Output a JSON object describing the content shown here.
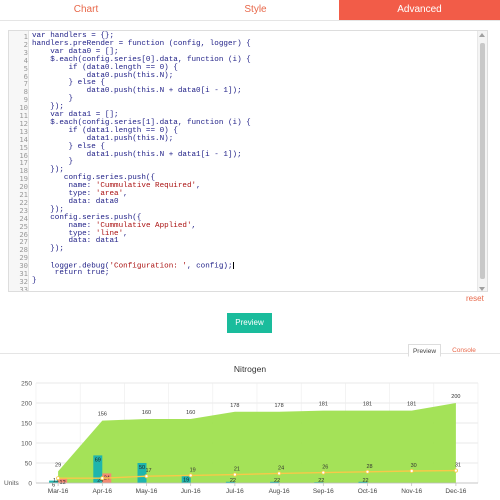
{
  "tabs": [
    {
      "label": "Chart",
      "active": false
    },
    {
      "label": "Style",
      "active": false
    },
    {
      "label": "Advanced",
      "active": true
    }
  ],
  "editor": {
    "lines": [
      "var handlers = {};",
      "handlers.preRender = function (config, logger) {",
      "    var data0 = [];",
      "    $.each(config.series[0].data, function (i) {",
      "        if (data0.length == 0) {",
      "            data0.push(this.N);",
      "        } else {",
      "            data0.push(this.N + data0[i - 1]);",
      "        }",
      "    });",
      "    var data1 = [];",
      "    $.each(config.series[1].data, function (i) {",
      "        if (data1.length == 0) {",
      "            data1.push(this.N);",
      "        } else {",
      "            data1.push(this.N + data1[i - 1]);",
      "        }",
      "    });",
      "       config.series.push({",
      "        name: 'Cummulative Required',",
      "        type: 'area',",
      "        data: data0",
      "    });",
      "    config.series.push({",
      "        name: 'Cummulative Applied',",
      "        type: 'line',",
      "        data: data1",
      "    });",
      "",
      "    logger.debug('Configuration: ', config);",
      "     return true;",
      "}",
      ""
    ]
  },
  "reset_label": "reset",
  "preview_button_label": "Preview",
  "preview_tabs": {
    "preview": "Preview",
    "console": "Console"
  },
  "colors": {
    "accent": "#f25c48",
    "teal": "#1abc9c",
    "area_green": "#9fe04f",
    "line_yellow": "#f7c948",
    "bar_teal": "#1fb5ad",
    "bar_salmon": "#f28b73"
  },
  "chart_data": {
    "type": "bar",
    "title": "Nitrogen",
    "ylabel": "Units",
    "ylim": [
      0,
      250
    ],
    "yticks": [
      0,
      50,
      100,
      150,
      200,
      250
    ],
    "categories": [
      "Mar-16",
      "Apr-16",
      "May-16",
      "Jun-16",
      "Jul-16",
      "Aug-16",
      "Sep-16",
      "Oct-16",
      "Nov-16",
      "Dec-16"
    ],
    "series": [
      {
        "type": "bar",
        "values": [
          6,
          69,
          50,
          19,
          3,
          3,
          2,
          3,
          0,
          0
        ],
        "labels": [
          "6",
          "69",
          "50",
          "19",
          "",
          "",
          "",
          "",
          "",
          ""
        ]
      },
      {
        "type": "bar",
        "values": [
          12,
          24,
          0,
          0,
          0,
          0,
          0,
          0,
          0,
          0
        ],
        "labels": [
          "12",
          "24",
          "",
          "",
          "",
          "",
          "",
          "",
          "",
          ""
        ]
      },
      {
        "name": "Cummulative Required",
        "type": "area",
        "values": [
          29,
          156,
          160,
          160,
          178,
          178,
          181,
          181,
          181,
          200
        ],
        "labels": [
          "29",
          "156",
          "160",
          "160",
          "178",
          "178",
          "181",
          "181",
          "181",
          "200"
        ]
      },
      {
        "name": "Cummulative Applied",
        "type": "line",
        "values": [
          12,
          12,
          17,
          19,
          21,
          24,
          26,
          28,
          30,
          31
        ],
        "labels": [
          "",
          "",
          "17",
          "19",
          "21",
          "24",
          "26",
          "28",
          "30",
          "31"
        ]
      }
    ],
    "bar_point_labels": [
      "12",
      "24",
      "",
      "",
      "22",
      "22",
      "22",
      "22",
      "",
      ""
    ],
    "grid": true
  }
}
